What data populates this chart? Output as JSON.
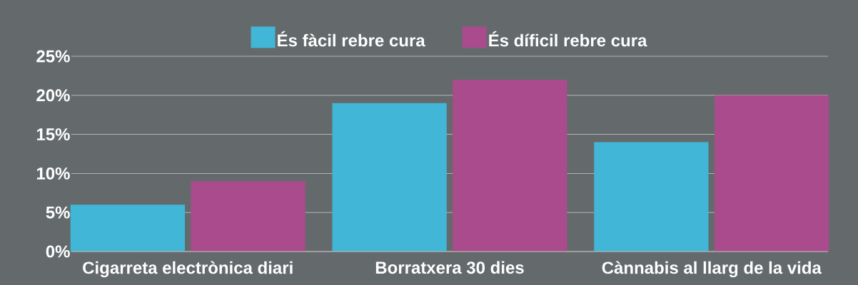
{
  "chart_data": {
    "type": "bar",
    "categories": [
      "Cigarreta electrònica diari",
      "Borratxera 30 dies",
      "Cànnabis al llarg de la vida"
    ],
    "series": [
      {
        "name": "És fàcil rebre cura",
        "color": "#41b6d6",
        "values": [
          6,
          19,
          14
        ]
      },
      {
        "name": "És díficil rebre cura",
        "color": "#a94b8c",
        "values": [
          9,
          22,
          20
        ]
      }
    ],
    "ylim": [
      0,
      25
    ],
    "yticks": [
      {
        "value": 0,
        "label": "0%"
      },
      {
        "value": 5,
        "label": "5%"
      },
      {
        "value": 10,
        "label": "10%"
      },
      {
        "value": 15,
        "label": "15%"
      },
      {
        "value": 20,
        "label": "20%"
      },
      {
        "value": 25,
        "label": "25%"
      }
    ],
    "grid": "y",
    "legend": "top"
  }
}
